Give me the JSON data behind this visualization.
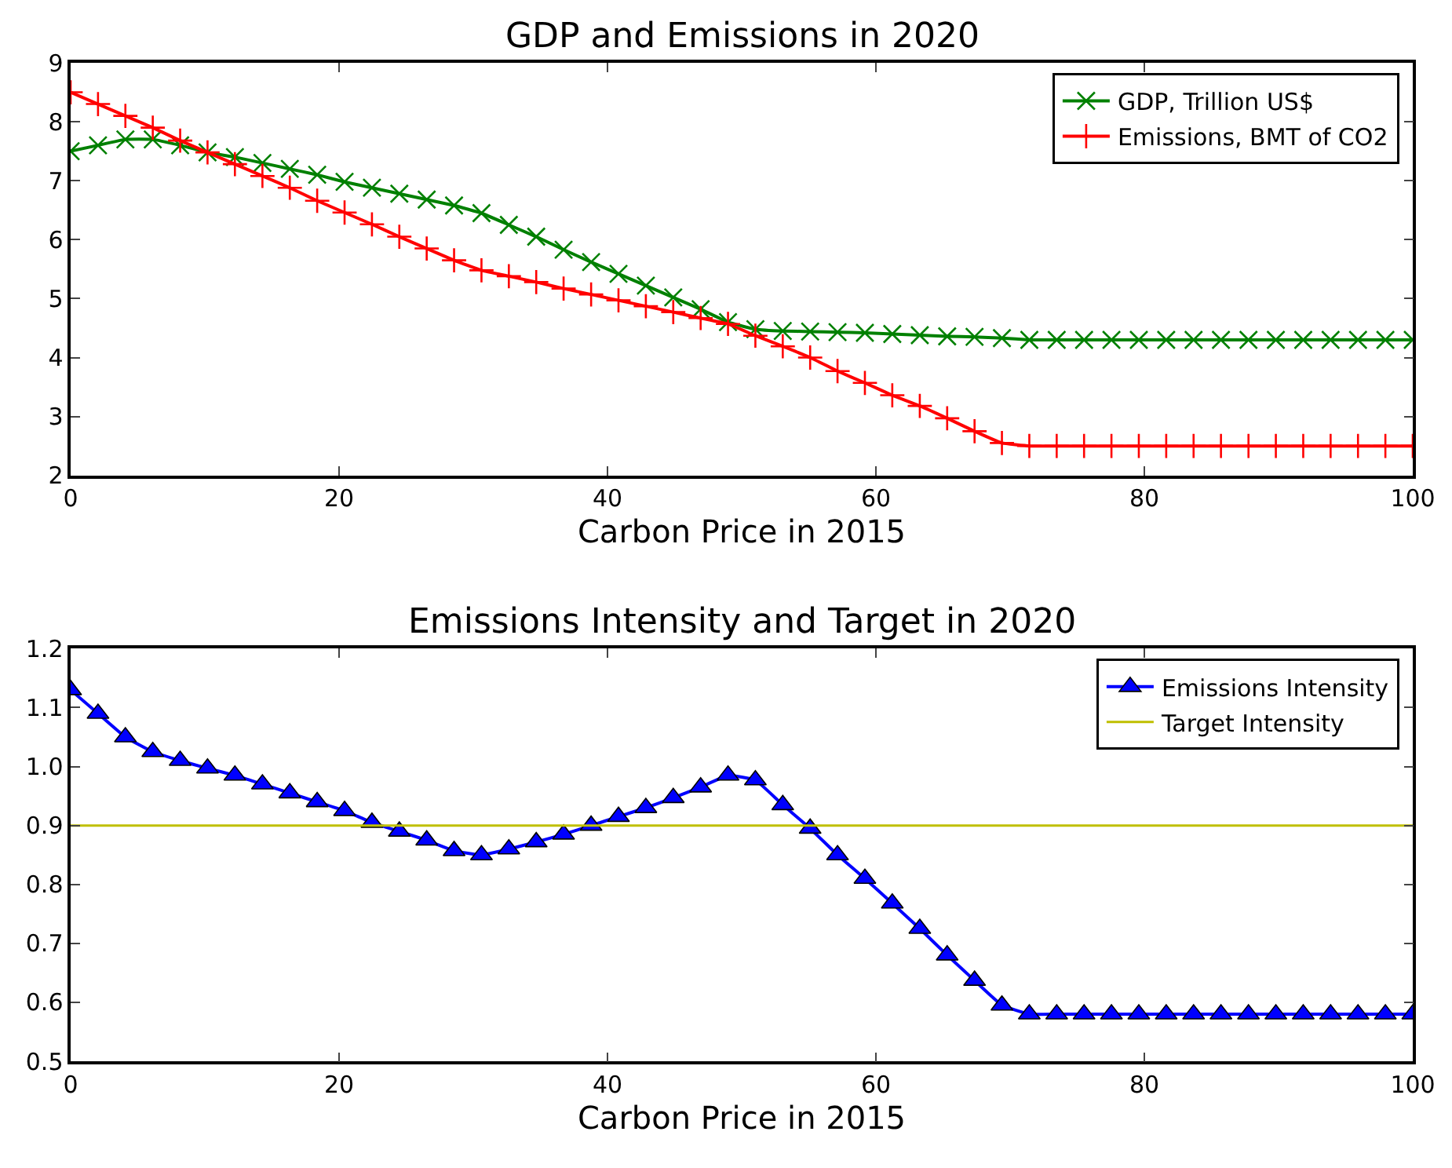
{
  "chart_data": [
    {
      "type": "line",
      "title": "GDP and Emissions in 2020",
      "xlabel": "Carbon Price in 2015",
      "x": [
        0,
        2.04,
        4.08,
        6.12,
        8.16,
        10.2,
        12.24,
        14.29,
        16.33,
        18.37,
        20.41,
        22.45,
        24.49,
        26.53,
        28.57,
        30.61,
        32.65,
        34.69,
        36.73,
        38.78,
        40.82,
        42.86,
        44.9,
        46.94,
        48.98,
        51.02,
        53.06,
        55.1,
        57.14,
        59.18,
        61.22,
        63.27,
        65.31,
        67.35,
        69.39,
        71.43,
        73.47,
        75.51,
        77.55,
        79.59,
        81.63,
        83.67,
        85.71,
        87.76,
        89.8,
        91.84,
        93.88,
        95.92,
        97.96,
        100
      ],
      "series": [
        {
          "name": "GDP, Trillion US$",
          "color": "#008000",
          "marker": "x",
          "values": [
            7.5,
            7.6,
            7.7,
            7.7,
            7.6,
            7.48,
            7.4,
            7.3,
            7.2,
            7.1,
            6.98,
            6.88,
            6.78,
            6.68,
            6.58,
            6.45,
            6.25,
            6.05,
            5.83,
            5.62,
            5.42,
            5.22,
            5.02,
            4.82,
            4.6,
            4.48,
            4.45,
            4.44,
            4.43,
            4.42,
            4.4,
            4.38,
            4.36,
            4.35,
            4.33,
            4.3,
            4.3,
            4.3,
            4.3,
            4.3,
            4.3,
            4.3,
            4.3,
            4.3,
            4.3,
            4.3,
            4.3,
            4.3,
            4.3,
            4.3
          ]
        },
        {
          "name": "Emissions, BMT of CO2",
          "color": "#ff0000",
          "marker": "cross",
          "values": [
            8.5,
            8.3,
            8.1,
            7.9,
            7.68,
            7.48,
            7.28,
            7.08,
            6.88,
            6.66,
            6.46,
            6.26,
            6.05,
            5.85,
            5.65,
            5.48,
            5.38,
            5.28,
            5.17,
            5.07,
            4.97,
            4.87,
            4.77,
            4.67,
            4.57,
            4.37,
            4.19,
            4.0,
            3.77,
            3.57,
            3.36,
            3.18,
            2.97,
            2.75,
            2.55,
            2.5,
            2.5,
            2.5,
            2.5,
            2.5,
            2.5,
            2.5,
            2.5,
            2.5,
            2.5,
            2.5,
            2.5,
            2.5,
            2.5,
            2.5
          ]
        }
      ],
      "xlim": [
        0,
        100
      ],
      "xticks": [
        0,
        20,
        40,
        60,
        80,
        100
      ],
      "ylim": [
        2,
        9
      ],
      "yticks": [
        2,
        3,
        4,
        5,
        6,
        7,
        8,
        9
      ],
      "legend": "top right"
    },
    {
      "type": "line",
      "title": "Emissions Intensity and Target in 2020",
      "xlabel": "Carbon Price in 2015",
      "x": [
        0,
        2.04,
        4.08,
        6.12,
        8.16,
        10.2,
        12.24,
        14.29,
        16.33,
        18.37,
        20.41,
        22.45,
        24.49,
        26.53,
        28.57,
        30.61,
        32.65,
        34.69,
        36.73,
        38.78,
        40.82,
        42.86,
        44.9,
        46.94,
        48.98,
        51.02,
        53.06,
        55.1,
        57.14,
        59.18,
        61.22,
        63.27,
        65.31,
        67.35,
        69.39,
        71.43,
        73.47,
        75.51,
        77.55,
        79.59,
        81.63,
        83.67,
        85.71,
        87.76,
        89.8,
        91.84,
        93.88,
        95.92,
        97.96,
        100
      ],
      "series": [
        {
          "name": "Emissions Intensity",
          "color": "#0000ff",
          "marker": "triangle",
          "values": [
            1.13,
            1.09,
            1.05,
            1.025,
            1.01,
            0.997,
            0.985,
            0.97,
            0.955,
            0.94,
            0.925,
            0.905,
            0.89,
            0.875,
            0.857,
            0.85,
            0.86,
            0.872,
            0.885,
            0.9,
            0.915,
            0.93,
            0.947,
            0.965,
            0.985,
            0.977,
            0.935,
            0.895,
            0.85,
            0.81,
            0.768,
            0.725,
            0.68,
            0.637,
            0.595,
            0.58,
            0.58,
            0.58,
            0.58,
            0.58,
            0.58,
            0.58,
            0.58,
            0.58,
            0.58,
            0.58,
            0.58,
            0.58,
            0.58,
            0.58
          ]
        }
      ],
      "ref_lines": [
        {
          "axis": "y",
          "value": 0.9,
          "label": "Target Intensity",
          "color": "#bfbf00"
        }
      ],
      "xlim": [
        0,
        100
      ],
      "xticks": [
        0,
        20,
        40,
        60,
        80,
        100
      ],
      "ylim": [
        0.5,
        1.2
      ],
      "yticks": [
        0.5,
        0.6,
        0.7,
        0.8,
        0.9,
        {
          "value": 1.0,
          "label": "1.0"
        },
        1.1,
        1.2
      ],
      "legend": "top right"
    }
  ]
}
